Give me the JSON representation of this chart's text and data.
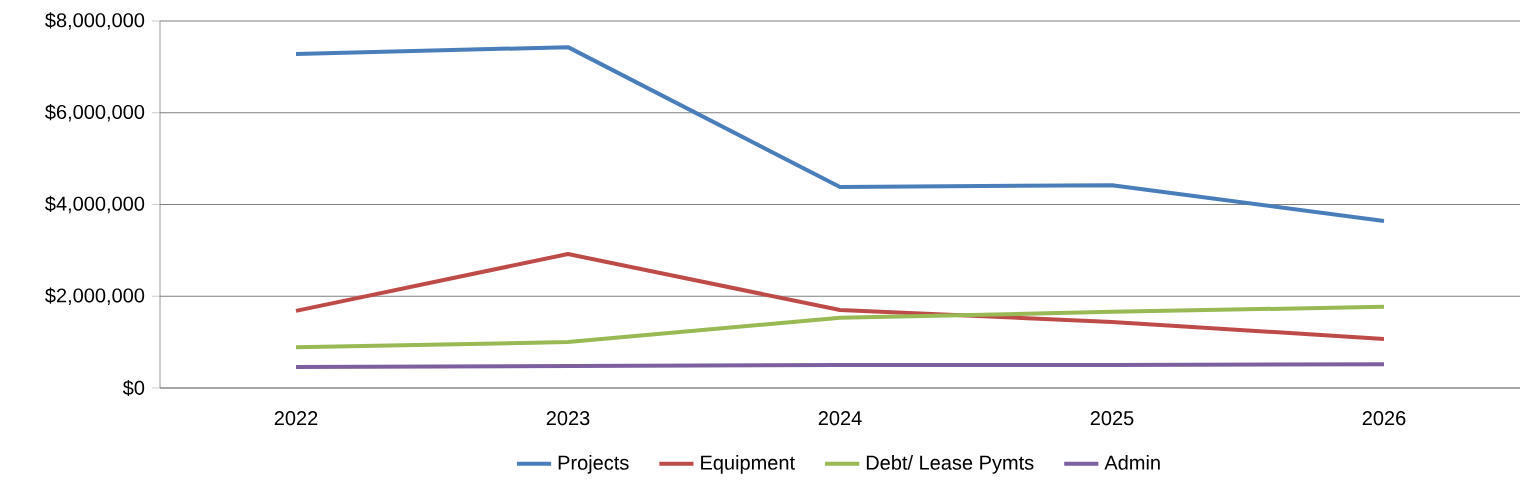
{
  "chart_data": {
    "type": "line",
    "categories": [
      "2022",
      "2023",
      "2024",
      "2025",
      "2026"
    ],
    "series": [
      {
        "name": "Projects",
        "color": "#4a7ebb",
        "values": [
          7280000,
          7430000,
          4380000,
          4420000,
          3640000
        ]
      },
      {
        "name": "Equipment",
        "color": "#be4b48",
        "values": [
          1680000,
          2920000,
          1700000,
          1440000,
          1070000
        ]
      },
      {
        "name": "Debt/ Lease Pymts",
        "color": "#98b954",
        "values": [
          890000,
          1000000,
          1530000,
          1660000,
          1770000
        ]
      },
      {
        "name": "Admin",
        "color": "#7d5fa0",
        "values": [
          460000,
          480000,
          500000,
          500000,
          520000
        ]
      }
    ],
    "ylim": [
      0,
      8000000
    ],
    "yticks": [
      {
        "value": 0,
        "label": "$0"
      },
      {
        "value": 2000000,
        "label": "$2,000,000"
      },
      {
        "value": 4000000,
        "label": "$4,000,000"
      },
      {
        "value": 6000000,
        "label": "$6,000,000"
      },
      {
        "value": 8000000,
        "label": "$8,000,000"
      }
    ],
    "grid": "y",
    "legend": "bottom",
    "marker": "none",
    "line_style": "solid"
  }
}
